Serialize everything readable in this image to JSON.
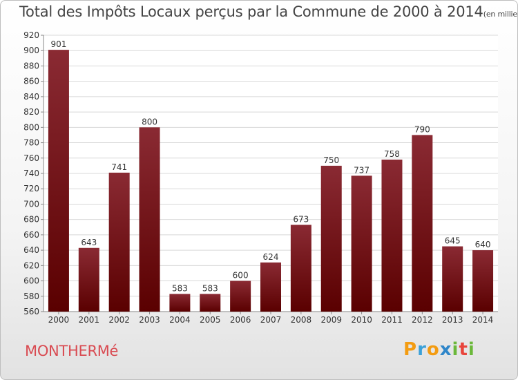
{
  "header": {
    "title": "Total des Impôts Locaux perçus par la Commune de 2000 à 2014",
    "unit": "(en milliers d'€)"
  },
  "commune": "MONTHERMé",
  "brand": {
    "letters": [
      "P",
      "r",
      "o",
      "x",
      "i",
      "t",
      "i"
    ],
    "colors": [
      "#f39c12",
      "#3ba1d9",
      "#f39c12",
      "#2f86c9",
      "#6bb83a",
      "#e8453c",
      "#6bb83a"
    ]
  },
  "colors": {
    "bar_top": "#8a2a33",
    "bar_bottom": "#5a0000",
    "grid": "#d8d8d8",
    "title": "#444444",
    "commune": "#d94b52"
  },
  "chart_data": {
    "type": "bar",
    "title": "Total des Impôts Locaux perçus par la Commune de 2000 à 2014",
    "xlabel": "",
    "ylabel": "",
    "categories": [
      "2000",
      "2001",
      "2002",
      "2003",
      "2004",
      "2005",
      "2006",
      "2007",
      "2008",
      "2009",
      "2010",
      "2011",
      "2012",
      "2013",
      "2014"
    ],
    "values": [
      901,
      643,
      741,
      800,
      583,
      583,
      600,
      624,
      673,
      750,
      737,
      758,
      790,
      645,
      640
    ],
    "ylim": [
      560,
      920
    ],
    "ytick_step": 20,
    "grid": true
  }
}
